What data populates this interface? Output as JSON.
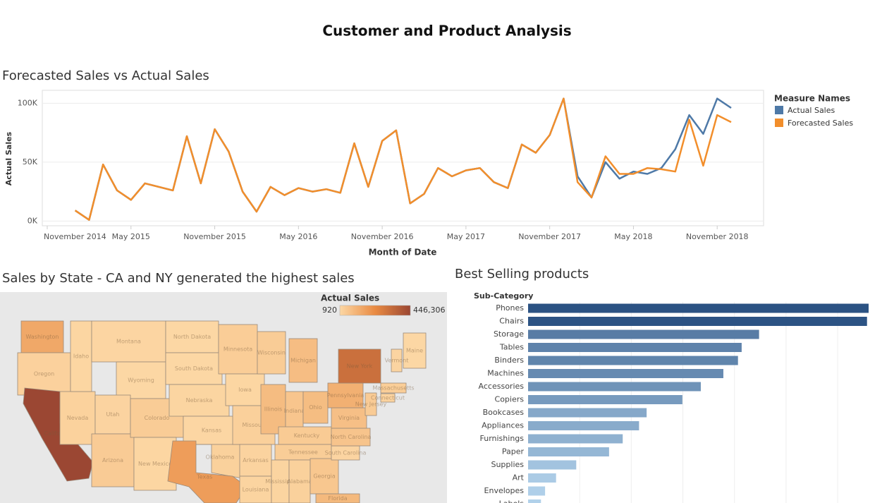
{
  "title": "Customer and Product Analysis",
  "chart_data": [
    {
      "type": "line",
      "title": "Forecasted Sales vs Actual Sales",
      "x_label": "Month of Date",
      "y_label": "Actual Sales",
      "x": [
        "2015-01",
        "2015-02",
        "2015-03",
        "2015-04",
        "2015-05",
        "2015-06",
        "2015-07",
        "2015-08",
        "2015-09",
        "2015-10",
        "2015-11",
        "2015-12",
        "2016-01",
        "2016-02",
        "2016-03",
        "2016-04",
        "2016-05",
        "2016-06",
        "2016-07",
        "2016-08",
        "2016-09",
        "2016-10",
        "2016-11",
        "2016-12",
        "2017-01",
        "2017-02",
        "2017-03",
        "2017-04",
        "2017-05",
        "2017-06",
        "2017-07",
        "2017-08",
        "2017-09",
        "2017-10",
        "2017-11",
        "2017-12",
        "2018-01",
        "2018-02",
        "2018-03",
        "2018-04",
        "2018-05",
        "2018-06",
        "2018-07",
        "2018-08",
        "2018-09",
        "2018-10",
        "2018-11",
        "2018-12"
      ],
      "series": [
        {
          "name": "Actual Sales",
          "color": "#4e79a7",
          "values": [
            9000,
            1000,
            48000,
            26000,
            18000,
            32000,
            29000,
            26000,
            72000,
            32000,
            78000,
            59000,
            25000,
            8000,
            29000,
            22000,
            28000,
            25000,
            27000,
            24000,
            66000,
            29000,
            68000,
            77000,
            15000,
            23000,
            45000,
            38000,
            43000,
            45000,
            33000,
            28000,
            65000,
            58000,
            73000,
            104000,
            38000,
            20000,
            50000,
            36000,
            42000,
            40000,
            45000,
            61000,
            90000,
            74000,
            104000,
            96000
          ]
        },
        {
          "name": "Forecasted Sales",
          "color": "#f28e2b",
          "values": [
            9000,
            1000,
            48000,
            26000,
            18000,
            32000,
            29000,
            26000,
            72000,
            32000,
            78000,
            59000,
            25000,
            8000,
            29000,
            22000,
            28000,
            25000,
            27000,
            24000,
            66000,
            29000,
            68000,
            77000,
            15000,
            23000,
            45000,
            38000,
            43000,
            45000,
            33000,
            28000,
            65000,
            58000,
            73000,
            104000,
            33000,
            20000,
            55000,
            40000,
            40000,
            45000,
            44000,
            42000,
            86000,
            47000,
            90000,
            84000
          ]
        }
      ],
      "xlim": [
        "2014-11",
        "2018-12"
      ],
      "xticks": [
        {
          "value": "2014-11",
          "label": "November 2014"
        },
        {
          "value": "2015-05",
          "label": "May 2015"
        },
        {
          "value": "2015-11",
          "label": "November 2015"
        },
        {
          "value": "2016-05",
          "label": "May 2016"
        },
        {
          "value": "2016-11",
          "label": "November 2016"
        },
        {
          "value": "2017-05",
          "label": "May 2017"
        },
        {
          "value": "2017-11",
          "label": "November 2017"
        },
        {
          "value": "2018-05",
          "label": "May 2018"
        },
        {
          "value": "2018-11",
          "label": "November 2018"
        }
      ],
      "ylim": [
        -4000,
        111000
      ],
      "yticks": [
        {
          "value": 0,
          "label": "0K"
        },
        {
          "value": 50000,
          "label": "50K"
        },
        {
          "value": 100000,
          "label": "100K"
        }
      ],
      "grid": true,
      "legend_title": "Measure Names",
      "legend": "right"
    },
    {
      "type": "map",
      "title": "Sales by State - CA and NY generated the highest sales",
      "legend_title": "Actual Sales",
      "regions": [
        "Washington",
        "Oregon",
        "California",
        "Nevada",
        "Idaho",
        "Montana",
        "Wyoming",
        "Utah",
        "Arizona",
        "Colorado",
        "New Mexico",
        "North Dakota",
        "South Dakota",
        "Nebraska",
        "Kansas",
        "Oklahoma",
        "Texas",
        "Minnesota",
        "Iowa",
        "Missouri",
        "Arkansas",
        "Louisiana",
        "Wisconsin",
        "Illinois",
        "Michigan",
        "Indiana",
        "Ohio",
        "Kentucky",
        "Tennessee",
        "Mississippi",
        "Alabama",
        "Georgia",
        "Florida",
        "South Carolina",
        "North Carolina",
        "Virginia",
        "Pennsylvania",
        "New York",
        "Maine",
        "Vermont",
        "Massachusetts",
        "New Jersey",
        "Connecticut"
      ],
      "values": [
        138641,
        17431,
        446306,
        16729,
        4382,
        5589,
        1603,
        11220,
        35282,
        32108,
        4784,
        920,
        1316,
        7465,
        2914,
        19683,
        170188,
        29863,
        4580,
        22205,
        11678,
        9217,
        32115,
        80166,
        76270,
        53555,
        78258,
        36592,
        30662,
        10771,
        19511,
        49096,
        89474,
        8482,
        55603,
        70637,
        116512,
        310876,
        1271,
        8929,
        28634,
        35764,
        13384
      ],
      "colorlim": [
        920,
        446306
      ],
      "colorticks": [
        920,
        {
          "value": 446306,
          "label": "446,306"
        }
      ],
      "color_range": [
        "#fcd7a4",
        "#e98b43",
        "#9b4733"
      ]
    },
    {
      "type": "bar",
      "orientation": "horizontal",
      "title": "Best Selling products",
      "y_label": "Sub-Category",
      "categories": [
        "Phones",
        "Chairs",
        "Storage",
        "Tables",
        "Binders",
        "Machines",
        "Accessories",
        "Copiers",
        "Bookcases",
        "Appliances",
        "Furnishings",
        "Paper",
        "Supplies",
        "Art",
        "Envelopes",
        "Labels"
      ],
      "values": [
        330007,
        328449,
        223844,
        206966,
        203413,
        189239,
        167380,
        149528,
        114880,
        107532,
        91705,
        78479,
        46674,
        27119,
        16476,
        12486
      ],
      "xlim": [
        0,
        330007
      ],
      "xgrid": [
        50000,
        100000,
        150000,
        200000,
        250000,
        300000
      ],
      "color_range": [
        "#b6d6ee",
        "#2b5283"
      ]
    }
  ]
}
